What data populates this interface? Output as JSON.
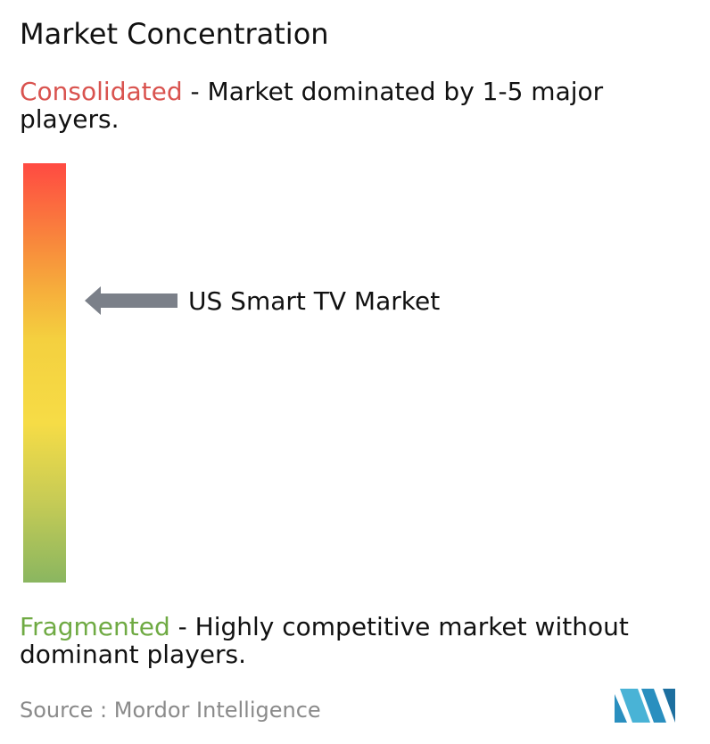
{
  "chart_data": {
    "type": "gradient-scale",
    "title": "Market Concentration",
    "scale_top": {
      "label": "Consolidated",
      "description": " - Market dominated by 1-5 major players."
    },
    "scale_bottom": {
      "label": "Fragmented",
      "description": " - Highly competitive market without dominant players."
    },
    "marker": {
      "label": "US Smart TV Market",
      "position_fraction_from_top": 0.33
    },
    "colors": {
      "consolidated": "#d9534f",
      "fragmented": "#6faa43",
      "arrow": "#7b8089"
    }
  },
  "source": {
    "text": "Source :  Mordor Intelligence"
  },
  "logo": {
    "icon": "mordor-intelligence-logo"
  }
}
